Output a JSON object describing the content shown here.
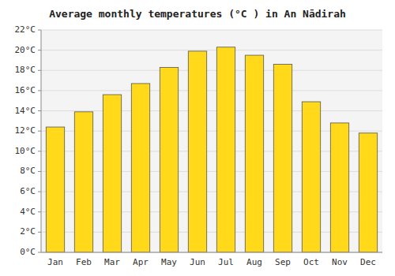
{
  "chart_data": {
    "type": "bar",
    "title": "Average monthly temperatures (°C ) in An Nādirah",
    "categories": [
      "Jan",
      "Feb",
      "Mar",
      "Apr",
      "May",
      "Jun",
      "Jul",
      "Aug",
      "Sep",
      "Oct",
      "Nov",
      "Dec"
    ],
    "values": [
      12.4,
      13.9,
      15.6,
      16.7,
      18.3,
      19.9,
      20.3,
      19.5,
      18.6,
      14.9,
      12.8,
      11.8
    ],
    "color": "#FFD91A",
    "ylim": [
      0,
      22
    ],
    "yticks": [
      {
        "value": 0,
        "label": "0°C"
      },
      {
        "value": 2,
        "label": "2°C"
      },
      {
        "value": 4,
        "label": "4°C"
      },
      {
        "value": 6,
        "label": "6°C"
      },
      {
        "value": 8,
        "label": "8°C"
      },
      {
        "value": 10,
        "label": "10°C"
      },
      {
        "value": 12,
        "label": "12°C"
      },
      {
        "value": 14,
        "label": "14°C"
      },
      {
        "value": 16,
        "label": "16°C"
      },
      {
        "value": 18,
        "label": "18°C"
      },
      {
        "value": 20,
        "label": "20°C"
      },
      {
        "value": 22,
        "label": "22°C"
      }
    ],
    "grid": true
  }
}
